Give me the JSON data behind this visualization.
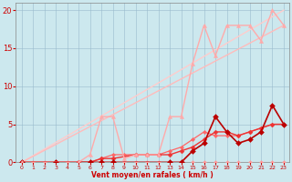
{
  "background_color": "#cce8ee",
  "grid_color": "#99bbcc",
  "xlabel": "Vent moyen/en rafales ( km/h )",
  "xlabel_color": "#cc0000",
  "tick_color": "#cc0000",
  "xlim": [
    -0.5,
    23.5
  ],
  "ylim": [
    0,
    21
  ],
  "xticks": [
    0,
    1,
    2,
    3,
    4,
    5,
    6,
    7,
    8,
    9,
    10,
    11,
    12,
    13,
    14,
    15,
    16,
    17,
    18,
    19,
    20,
    21,
    22,
    23
  ],
  "yticks": [
    0,
    5,
    10,
    15,
    20
  ],
  "lines": [
    {
      "x": [
        0,
        23
      ],
      "y": [
        0,
        20
      ],
      "color": "#ffcccc",
      "lw": 1.0,
      "marker": "none"
    },
    {
      "x": [
        0,
        23
      ],
      "y": [
        0,
        18
      ],
      "color": "#ffbbbb",
      "lw": 1.0,
      "marker": "none"
    },
    {
      "x": [
        0,
        1,
        2,
        3,
        4,
        5,
        6,
        7,
        8,
        9,
        10,
        11,
        12,
        13,
        14,
        15,
        16,
        17,
        18,
        19,
        20,
        21,
        22,
        23
      ],
      "y": [
        0,
        0,
        0,
        0,
        0,
        0,
        0,
        0,
        0,
        0,
        0,
        0,
        0,
        0,
        0,
        0,
        0,
        0,
        0,
        0,
        0,
        0,
        0,
        0
      ],
      "color": "#ff9999",
      "lw": 0.8,
      "marker": "D",
      "ms": 2.0
    },
    {
      "x": [
        0,
        3,
        6,
        7,
        8,
        9,
        10,
        11,
        12,
        13,
        14,
        15,
        16,
        17,
        18,
        19,
        20,
        21,
        22,
        23
      ],
      "y": [
        0,
        0,
        0,
        0.5,
        1,
        1,
        1,
        1,
        1,
        1.5,
        2,
        3,
        4,
        3.5,
        3.5,
        3.5,
        4,
        4.5,
        5,
        5
      ],
      "color": "#ff6666",
      "lw": 0.9,
      "marker": "D",
      "ms": 2.2
    },
    {
      "x": [
        0,
        3,
        5,
        6,
        7,
        8,
        10,
        11,
        12,
        13,
        14,
        15,
        16,
        17,
        18,
        19,
        20,
        21,
        22,
        23
      ],
      "y": [
        0,
        0,
        0,
        0,
        0.5,
        0.5,
        1,
        1,
        1,
        1,
        1.5,
        2,
        3,
        4,
        4,
        3.5,
        4,
        4.5,
        5,
        5
      ],
      "color": "#ee3333",
      "lw": 1.0,
      "marker": "D",
      "ms": 2.5
    },
    {
      "x": [
        0,
        3,
        6,
        7,
        8,
        13,
        14,
        15,
        16,
        17,
        18,
        19,
        20,
        21,
        22,
        23
      ],
      "y": [
        0,
        0,
        0,
        0,
        0,
        0,
        0,
        1.5,
        2.5,
        6,
        4,
        2.5,
        3,
        4,
        7.5,
        5
      ],
      "color": "#bb0000",
      "lw": 1.2,
      "marker": "D",
      "ms": 3.0
    },
    {
      "x": [
        0,
        5,
        6,
        7,
        8,
        9,
        10,
        11,
        12,
        13,
        14,
        15,
        16,
        17,
        18,
        19,
        20,
        21,
        22,
        23
      ],
      "y": [
        0,
        0,
        1,
        6,
        6,
        0.5,
        1,
        1,
        1,
        6,
        6,
        13,
        18,
        14,
        18,
        18,
        18,
        16,
        20,
        18
      ],
      "color": "#ffaaaa",
      "lw": 1.0,
      "marker": "^",
      "ms": 3.0
    }
  ]
}
